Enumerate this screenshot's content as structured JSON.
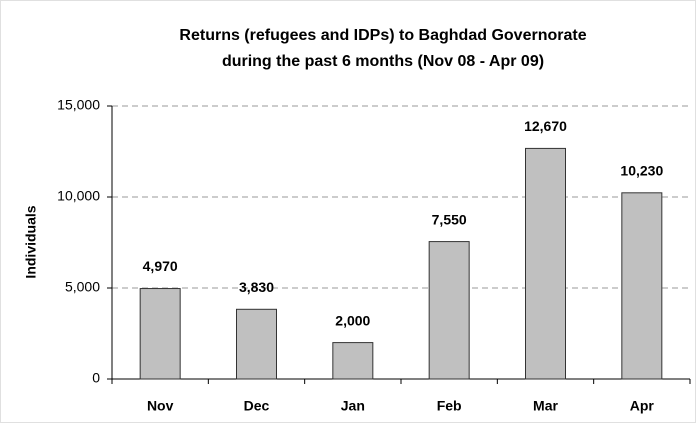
{
  "chart_data": {
    "type": "bar",
    "title": [
      "Returns (refugees and IDPs) to Baghdad Governorate",
      "during the past 6 months (Nov 08 - Apr 09)"
    ],
    "y_label": "Individuals",
    "categories": [
      "Nov",
      "Dec",
      "Jan",
      "Feb",
      "Mar",
      "Apr"
    ],
    "values": [
      4970,
      3830,
      2000,
      7550,
      12670,
      10230
    ],
    "value_labels": [
      "4,970",
      "3,830",
      "2,000",
      "7,550",
      "12,670",
      "10,230"
    ],
    "color": "#c0c0c0",
    "ylim": [
      0,
      15000
    ],
    "yticks": [
      0,
      {
        "value": 5000,
        "label": "5,000"
      },
      {
        "value": 10000,
        "label": "10,000"
      },
      {
        "value": 15000,
        "label": "15,000"
      }
    ],
    "grid": true
  }
}
